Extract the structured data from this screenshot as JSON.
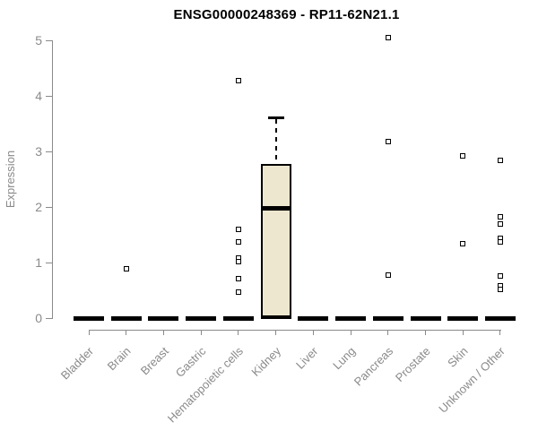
{
  "chart_data": {
    "type": "boxplot",
    "title": "ENSG00000248369 - RP11-62N21.1",
    "ylabel": "Expression",
    "xlabel": "",
    "ylim": [
      0,
      5
    ],
    "yticks": [
      "0",
      "1",
      "2",
      "3",
      "4",
      "5"
    ],
    "grid": false,
    "legend": "none",
    "categories": [
      "Bladder",
      "Brain",
      "Breast",
      "Gastric",
      "Hematopoietic cells",
      "Kidney",
      "Liver",
      "Lung",
      "Pancreas",
      "Prostate",
      "Skin",
      "Unknown / Other"
    ],
    "boxes": [
      {
        "category": "Bladder",
        "q1": 0,
        "median": 0,
        "q3": 0,
        "whisker_low": 0,
        "whisker_high": 0,
        "outliers": []
      },
      {
        "category": "Brain",
        "q1": 0,
        "median": 0,
        "q3": 0,
        "whisker_low": 0,
        "whisker_high": 0,
        "outliers": [
          0.89
        ]
      },
      {
        "category": "Breast",
        "q1": 0,
        "median": 0,
        "q3": 0,
        "whisker_low": 0,
        "whisker_high": 0,
        "outliers": []
      },
      {
        "category": "Gastric",
        "q1": 0,
        "median": 0,
        "q3": 0,
        "whisker_low": 0,
        "whisker_high": 0,
        "outliers": []
      },
      {
        "category": "Hematopoietic cells",
        "q1": 0,
        "median": 0,
        "q3": 0,
        "whisker_low": 0,
        "whisker_high": 0,
        "outliers": [
          4.28,
          1.6,
          1.37,
          1.08,
          1.02,
          0.71,
          0.47
        ]
      },
      {
        "category": "Kidney",
        "q1": 0,
        "median": 1.97,
        "q3": 2.77,
        "whisker_low": 0,
        "whisker_high": 3.61,
        "outliers": []
      },
      {
        "category": "Liver",
        "q1": 0,
        "median": 0,
        "q3": 0,
        "whisker_low": 0,
        "whisker_high": 0,
        "outliers": []
      },
      {
        "category": "Lung",
        "q1": 0,
        "median": 0,
        "q3": 0,
        "whisker_low": 0,
        "whisker_high": 0,
        "outliers": []
      },
      {
        "category": "Pancreas",
        "q1": 0,
        "median": 0,
        "q3": 0,
        "whisker_low": 0,
        "whisker_high": 0,
        "outliers": [
          5.05,
          3.18,
          0.77
        ]
      },
      {
        "category": "Prostate",
        "q1": 0,
        "median": 0,
        "q3": 0,
        "whisker_low": 0,
        "whisker_high": 0,
        "outliers": []
      },
      {
        "category": "Skin",
        "q1": 0,
        "median": 0,
        "q3": 0,
        "whisker_low": 0,
        "whisker_high": 0,
        "outliers": [
          2.92,
          1.34
        ]
      },
      {
        "category": "Unknown / Other",
        "q1": 0,
        "median": 0,
        "q3": 0,
        "whisker_low": 0,
        "whisker_high": 0,
        "outliers": [
          2.84,
          1.82,
          1.69,
          1.43,
          1.37,
          0.76,
          0.58,
          0.52
        ]
      }
    ],
    "colors": {
      "box_fill": "#ece7ce",
      "ink": "#000000",
      "axis": "#8a8a8a",
      "label_text": "#8a8a8a",
      "title_text": "#000000",
      "background": "#ffffff"
    }
  }
}
